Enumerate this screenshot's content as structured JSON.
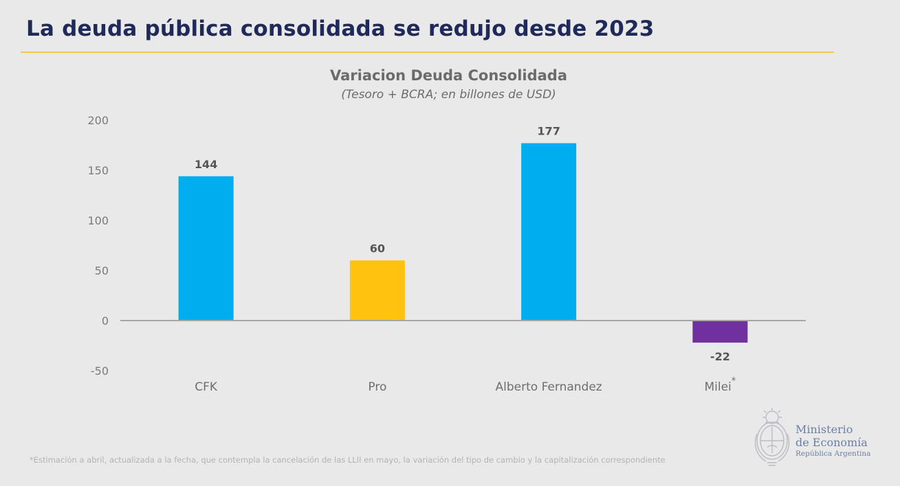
{
  "header": {
    "title": "La deuda pública consolidada se redujo desde 2023"
  },
  "colors": {
    "title": "#1f2a5a",
    "rule": "#f1c84a",
    "cfk": "#00aeef",
    "pro": "#ffc20e",
    "alberto": "#00aeef",
    "milei": "#7030a0",
    "zero_line": "#a6a6a6"
  },
  "chart_data": {
    "type": "bar",
    "title": "Variacion Deuda Consolidada",
    "subtitle": "(Tesoro + BCRA; en billones de USD)",
    "categories": [
      "CFK",
      "Pro",
      "Alberto Fernandez",
      "Milei"
    ],
    "category_marks": [
      "",
      "",
      "",
      "*"
    ],
    "values": [
      144,
      60,
      177,
      -22
    ],
    "data_labels": [
      "144",
      "60",
      "177",
      "-22"
    ],
    "bar_colors": [
      "#00aeef",
      "#ffc20e",
      "#00aeef",
      "#7030a0"
    ],
    "ylim": [
      -50,
      200
    ],
    "yticks": [
      200,
      150,
      100,
      50,
      0,
      -50
    ],
    "xlabel": "",
    "ylabel": "",
    "grid": false
  },
  "footnote": "*Estimación a abril, actualizada a la fecha, que contempla la cancelación de las LLII en mayo, la variación del tipo de cambio y la capitalización correspondiente",
  "logo": {
    "line1": "Ministerio",
    "line2": "de Economía",
    "line3": "República Argentina",
    "icon": "national-coat-of-arms-icon"
  }
}
